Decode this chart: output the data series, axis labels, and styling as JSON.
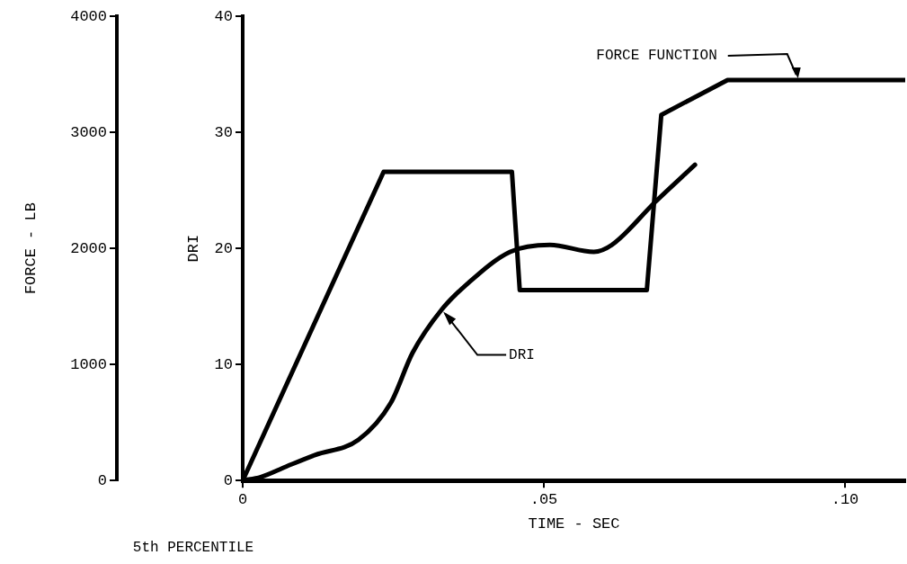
{
  "chart_data": {
    "type": "line",
    "xlabel": "TIME - SEC",
    "ylabel": "FORCE - LB",
    "y2label": "DRI",
    "xlim": [
      0,
      0.11
    ],
    "xticks": [
      {
        "value": 0,
        "label": "0"
      },
      {
        "value": 0.05,
        "label": ".05"
      },
      {
        "value": 0.1,
        "label": ".10"
      }
    ],
    "ylim": [
      0,
      4000
    ],
    "yticks": [
      0,
      1000,
      2000,
      3000,
      4000
    ],
    "y2lim": [
      0,
      40
    ],
    "y2ticks": [
      0,
      10,
      20,
      30,
      40
    ],
    "grid": false,
    "legend": false,
    "marker": "none",
    "line_style": "solid",
    "series": [
      {
        "color": "#000000",
        "axis": "y",
        "x": [
          0,
          0.0234,
          0.0447,
          0.046,
          0.0671,
          0.0695,
          0.0805,
          0.11
        ],
        "values": [
          0,
          2660,
          2660,
          1640,
          1640,
          3150,
          3450,
          3450
        ]
      },
      {
        "color": "#000000",
        "axis": "y2",
        "x": [
          0,
          0.003,
          0.0072,
          0.012,
          0.0192,
          0.0246,
          0.0282,
          0.033,
          0.0372,
          0.0444,
          0.051,
          0.0583,
          0.0613,
          0.0685,
          0.0751
        ],
        "values": [
          0,
          0.3,
          1.2,
          2.2,
          3.5,
          6.7,
          11.0,
          14.7,
          16.9,
          19.7,
          20.3,
          19.7,
          20.3,
          24.0,
          27.2
        ]
      }
    ],
    "annotations": [
      {
        "text": "FORCE FUNCTION",
        "x": 0.0922,
        "y": 3450
      },
      {
        "text": "DRI",
        "x": 0.033,
        "y": 1470
      },
      "5th PERCENTILE"
    ]
  }
}
